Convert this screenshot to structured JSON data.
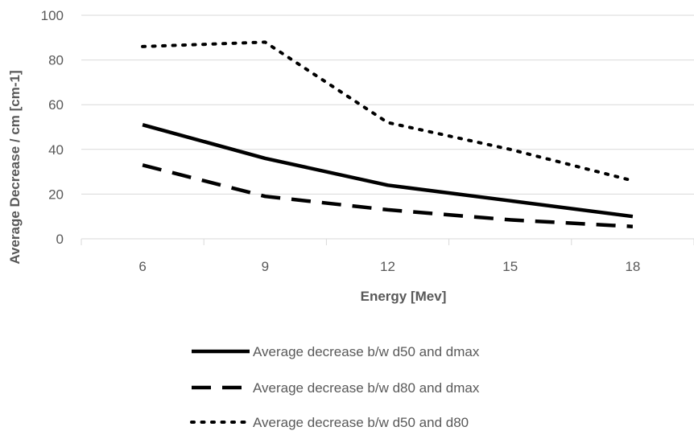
{
  "chart_data": {
    "type": "line",
    "title": "",
    "xlabel": "Energy [Mev]",
    "ylabel": "Average Decrease / cm [cm-1]",
    "categories": [
      "6",
      "9",
      "12",
      "15",
      "18"
    ],
    "ylim": [
      0,
      100
    ],
    "yticks": [
      "0",
      "20",
      "40",
      "60",
      "80",
      "100"
    ],
    "grid": "horizontal",
    "legend_position": "bottom",
    "series": [
      {
        "name": "Average decrease b/w d50 and dmax",
        "values": [
          51,
          36,
          24,
          17,
          10
        ],
        "style": "solid",
        "color": "#000000"
      },
      {
        "name": "Average decrease b/w d80 and dmax",
        "values": [
          33,
          19,
          13,
          8.5,
          5.5
        ],
        "style": "dashed",
        "color": "#000000"
      },
      {
        "name": "Average decrease b/w d50 and d80",
        "values": [
          86,
          88,
          52,
          40,
          26
        ],
        "style": "dotted",
        "color": "#000000"
      }
    ]
  }
}
